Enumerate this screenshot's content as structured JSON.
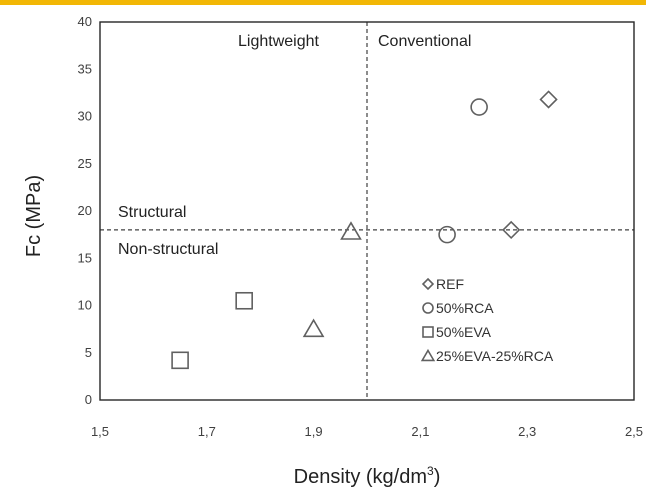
{
  "colors": {
    "top_bar": "#f2b705",
    "marker_stroke": "#606060",
    "axis": "#262626",
    "divider": "#404040"
  },
  "chart_data": {
    "type": "scatter",
    "title": "",
    "xlabel": "Density (kg/dm",
    "xlabel_superscript": "3",
    "xlabel_suffix": ")",
    "ylabel": "Fc (MPa)",
    "xlim": [
      1.5,
      2.5
    ],
    "ylim": [
      0,
      40
    ],
    "x_ticks": [
      "1,5",
      "1,7",
      "1,9",
      "2,1",
      "2,3",
      "2,5"
    ],
    "y_ticks": [
      "0",
      "5",
      "10",
      "15",
      "20",
      "25",
      "30",
      "35",
      "40"
    ],
    "grid": false,
    "legend_position": "lower-right",
    "reference_lines": {
      "vertical_x": 2.0,
      "horizontal_y": 18
    },
    "region_labels": {
      "top_left": "Lightweight",
      "top_right": "Conventional",
      "upper_left": "Structural",
      "lower_left": "Non-structural"
    },
    "series": [
      {
        "name": "REF",
        "marker": "diamond",
        "points": [
          [
            2.34,
            31.8
          ],
          [
            2.27,
            18.0
          ]
        ]
      },
      {
        "name": "50%RCA",
        "marker": "circle",
        "points": [
          [
            2.21,
            31.0
          ],
          [
            2.15,
            17.5
          ]
        ]
      },
      {
        "name": "50%EVA",
        "marker": "square",
        "points": [
          [
            1.77,
            10.5
          ],
          [
            1.65,
            4.2
          ]
        ]
      },
      {
        "name": "25%EVA-25%RCA",
        "marker": "triangle",
        "points": [
          [
            1.97,
            17.8
          ],
          [
            1.9,
            7.5
          ]
        ]
      }
    ]
  }
}
